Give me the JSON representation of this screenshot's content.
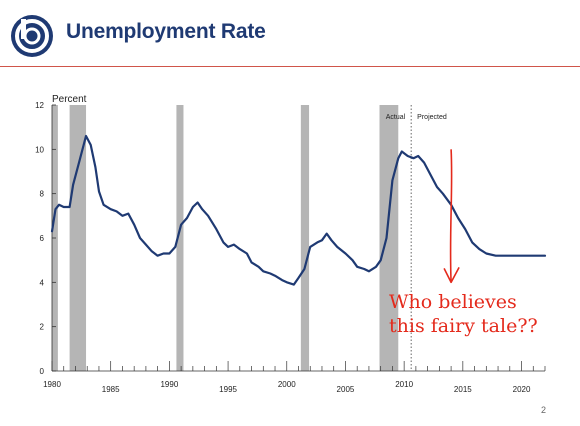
{
  "header": {
    "title": "Unemployment Rate",
    "logo_icon": "circular-b-logo-icon",
    "accent_color": "#1f3a73",
    "rule_color": "#d0554a"
  },
  "page_number": "2",
  "annotation": {
    "lines": [
      "Who believes",
      "this fairy tale??"
    ],
    "color": "#e42a1c",
    "arrow_from_date": 2014.0,
    "arrow_top_value": 10.0,
    "arrow_bottom_value": 4.0
  },
  "chart_data": {
    "type": "line",
    "title": "",
    "ylabel": "Percent",
    "xlabel": "",
    "xlim": [
      1980,
      2022
    ],
    "ylim": [
      0,
      12
    ],
    "x_ticks": [
      1980,
      1985,
      1990,
      1995,
      2000,
      2005,
      2010,
      2015,
      2020
    ],
    "y_ticks": [
      0,
      2,
      4,
      6,
      8,
      10,
      12
    ],
    "grid": false,
    "legend": null,
    "line_color": "#1f3a73",
    "recession_color": "#b5b5b5",
    "recessions": [
      [
        1980.0,
        1980.5
      ],
      [
        1981.5,
        1982.9
      ],
      [
        1990.6,
        1991.2
      ],
      [
        2001.2,
        2001.9
      ],
      [
        2007.9,
        2009.5
      ]
    ],
    "divider_x": 2010.6,
    "divider_labels": {
      "left": "Actual",
      "right": "Projected"
    },
    "series": [
      {
        "points": [
          [
            1980.0,
            6.3
          ],
          [
            1980.3,
            7.3
          ],
          [
            1980.6,
            7.5
          ],
          [
            1981.0,
            7.4
          ],
          [
            1981.5,
            7.4
          ],
          [
            1981.8,
            8.4
          ],
          [
            1982.3,
            9.4
          ],
          [
            1982.9,
            10.6
          ],
          [
            1983.3,
            10.2
          ],
          [
            1983.7,
            9.2
          ],
          [
            1984.0,
            8.1
          ],
          [
            1984.4,
            7.5
          ],
          [
            1985.0,
            7.3
          ],
          [
            1985.5,
            7.2
          ],
          [
            1986.0,
            7.0
          ],
          [
            1986.5,
            7.1
          ],
          [
            1987.0,
            6.6
          ],
          [
            1987.5,
            6.0
          ],
          [
            1988.0,
            5.7
          ],
          [
            1988.5,
            5.4
          ],
          [
            1989.0,
            5.2
          ],
          [
            1989.5,
            5.3
          ],
          [
            1990.0,
            5.3
          ],
          [
            1990.5,
            5.6
          ],
          [
            1991.0,
            6.6
          ],
          [
            1991.5,
            6.9
          ],
          [
            1992.0,
            7.4
          ],
          [
            1992.4,
            7.6
          ],
          [
            1992.8,
            7.3
          ],
          [
            1993.3,
            7.0
          ],
          [
            1994.0,
            6.4
          ],
          [
            1994.6,
            5.8
          ],
          [
            1995.0,
            5.6
          ],
          [
            1995.5,
            5.7
          ],
          [
            1996.0,
            5.5
          ],
          [
            1996.6,
            5.3
          ],
          [
            1997.0,
            4.9
          ],
          [
            1997.6,
            4.7
          ],
          [
            1998.0,
            4.5
          ],
          [
            1998.6,
            4.4
          ],
          [
            1999.0,
            4.3
          ],
          [
            1999.6,
            4.1
          ],
          [
            2000.0,
            4.0
          ],
          [
            2000.6,
            3.9
          ],
          [
            2001.0,
            4.2
          ],
          [
            2001.5,
            4.6
          ],
          [
            2002.0,
            5.6
          ],
          [
            2002.6,
            5.8
          ],
          [
            2003.0,
            5.9
          ],
          [
            2003.4,
            6.2
          ],
          [
            2003.8,
            5.9
          ],
          [
            2004.3,
            5.6
          ],
          [
            2005.0,
            5.3
          ],
          [
            2005.6,
            5.0
          ],
          [
            2006.0,
            4.7
          ],
          [
            2006.6,
            4.6
          ],
          [
            2007.0,
            4.5
          ],
          [
            2007.6,
            4.7
          ],
          [
            2008.0,
            5.0
          ],
          [
            2008.5,
            6.0
          ],
          [
            2009.0,
            8.6
          ],
          [
            2009.5,
            9.6
          ],
          [
            2009.8,
            9.9
          ],
          [
            2010.3,
            9.7
          ],
          [
            2010.8,
            9.6
          ],
          [
            2011.2,
            9.7
          ],
          [
            2011.7,
            9.4
          ],
          [
            2012.3,
            8.8
          ],
          [
            2012.8,
            8.3
          ],
          [
            2013.3,
            8.0
          ],
          [
            2014.0,
            7.5
          ],
          [
            2014.6,
            6.9
          ],
          [
            2015.2,
            6.4
          ],
          [
            2015.8,
            5.8
          ],
          [
            2016.4,
            5.5
          ],
          [
            2017.0,
            5.3
          ],
          [
            2017.8,
            5.2
          ],
          [
            2019.0,
            5.2
          ],
          [
            2020.5,
            5.2
          ],
          [
            2022.0,
            5.2
          ]
        ]
      }
    ]
  }
}
